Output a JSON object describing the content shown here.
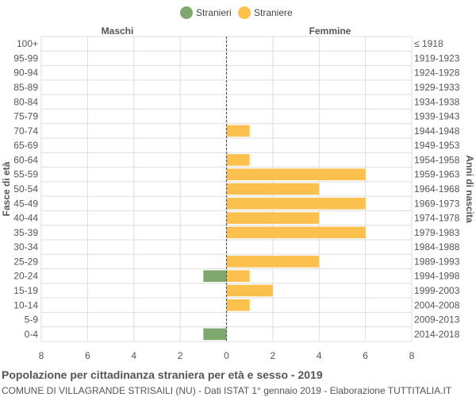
{
  "colors": {
    "male": "#7fa86f",
    "female": "#fbc04e",
    "grid": "#dddddd",
    "axis_text": "#555555",
    "center_line": "#5a5a3a"
  },
  "legend": {
    "male_label": "Stranieri",
    "female_label": "Straniere"
  },
  "footer": {
    "title": "Popolazione per cittadinanza straniera per età e sesso - 2019",
    "subtitle": "COMUNE DI VILLAGRANDE STRISAILI (NU) - Dati ISTAT 1° gennaio 2019 - Elaborazione TUTTITALIA.IT"
  },
  "chart_data": {
    "type": "bar",
    "orientation": "horizontal-pyramid",
    "left_header": "Maschi",
    "right_header": "Femmine",
    "ylabel_left": "Fasce di età",
    "ylabel_right": "Anni di nascita",
    "xlim": [
      -8,
      8
    ],
    "x_ticks": [
      -8,
      -6,
      -4,
      -2,
      0,
      2,
      4,
      6,
      8
    ],
    "x_tick_labels": [
      "8",
      "6",
      "4",
      "2",
      "0",
      "2",
      "4",
      "6",
      "8"
    ],
    "grid": true,
    "legend_position": "top-center",
    "age_groups": [
      "100+",
      "95-99",
      "90-94",
      "85-89",
      "80-84",
      "75-79",
      "70-74",
      "65-69",
      "60-64",
      "55-59",
      "50-54",
      "45-49",
      "40-44",
      "35-39",
      "30-34",
      "25-29",
      "20-24",
      "15-19",
      "10-14",
      "5-9",
      "0-4"
    ],
    "birth_years": [
      "≤ 1918",
      "1919-1923",
      "1924-1928",
      "1929-1933",
      "1934-1938",
      "1939-1943",
      "1944-1948",
      "1949-1953",
      "1954-1958",
      "1959-1963",
      "1964-1968",
      "1969-1973",
      "1974-1978",
      "1979-1983",
      "1984-1988",
      "1989-1993",
      "1994-1998",
      "1999-2003",
      "2004-2008",
      "2009-2013",
      "2014-2018"
    ],
    "series": [
      {
        "name": "Stranieri",
        "values": [
          0,
          0,
          0,
          0,
          0,
          0,
          0,
          0,
          0,
          0,
          0,
          0,
          0,
          0,
          0,
          0,
          1,
          0,
          0,
          0,
          1
        ]
      },
      {
        "name": "Straniere",
        "values": [
          0,
          0,
          0,
          0,
          0,
          0,
          1,
          0,
          1,
          6,
          4,
          6,
          4,
          6,
          0,
          4,
          1,
          2,
          1,
          0,
          0
        ]
      }
    ]
  }
}
